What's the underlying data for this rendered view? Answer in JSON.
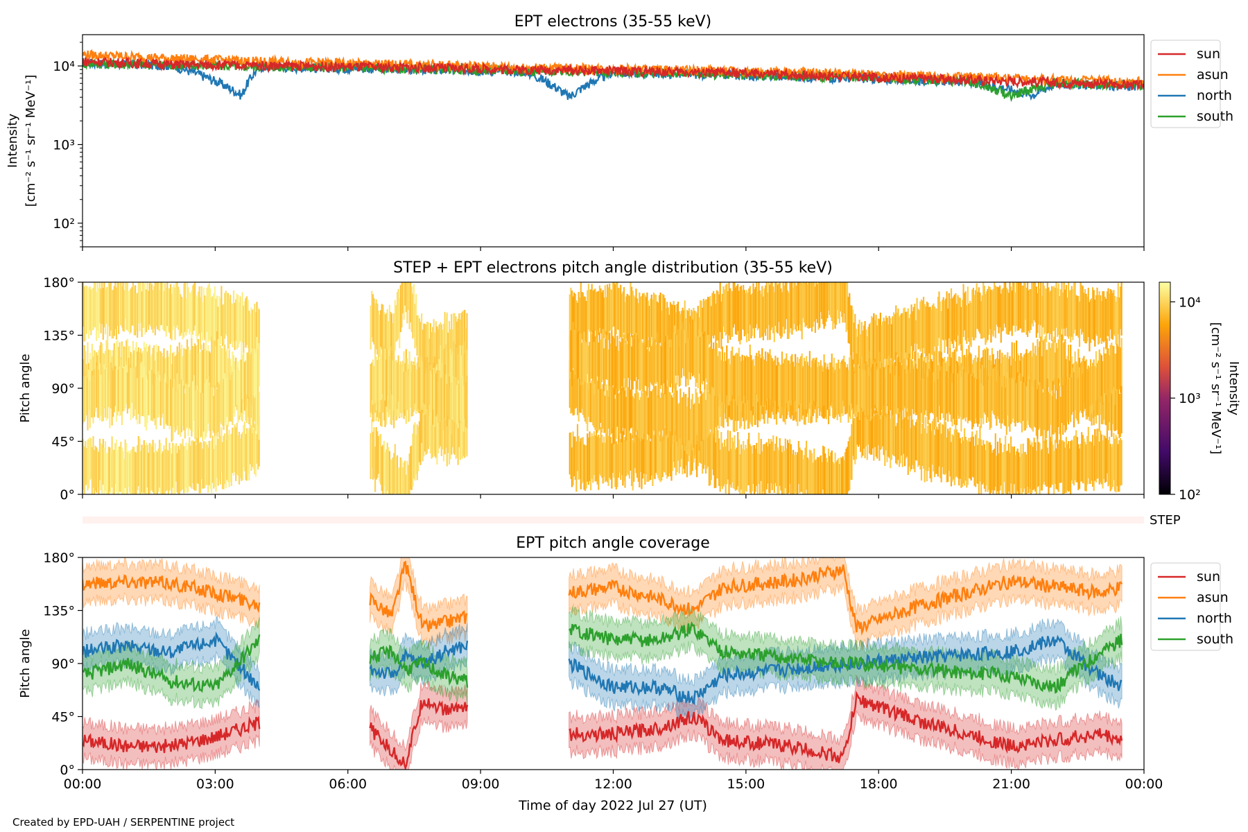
{
  "figure": {
    "footer": "Created by EPD-UAH / SERPENTINE project",
    "xlabel": "Time of day 2022 Jul 27 (UT)",
    "time_ticks": [
      "00:00",
      "03:00",
      "06:00",
      "09:00",
      "12:00",
      "15:00",
      "18:00",
      "21:00",
      "00:00"
    ]
  },
  "colors": {
    "sun": "#d62728",
    "asun": "#ff7f0e",
    "north": "#1f77b4",
    "south": "#2ca02c"
  },
  "chart_data": [
    {
      "type": "line",
      "title": "EPT electrons (35-55 keV)",
      "ylabel_line1": "Intensity",
      "ylabel_line2": "[cm⁻² s⁻¹ sr⁻¹ MeV⁻¹]",
      "yscale": "log",
      "ylim": [
        50,
        25000
      ],
      "y_ticks": [
        "10²",
        "10³",
        "10⁴"
      ],
      "x_hours_range": [
        0,
        24
      ],
      "legend": [
        "sun",
        "asun",
        "north",
        "south"
      ],
      "series": [
        {
          "name": "sun",
          "x": [
            0,
            2,
            4,
            6,
            8,
            10,
            12,
            14,
            16,
            18,
            20,
            22,
            24
          ],
          "y": [
            11500,
            10500,
            10200,
            9800,
            9500,
            9000,
            8700,
            8300,
            7800,
            7200,
            6700,
            6200,
            5700
          ]
        },
        {
          "name": "asun",
          "x": [
            0,
            2,
            4,
            6,
            8,
            10,
            12,
            14,
            16,
            18,
            20,
            22,
            24
          ],
          "y": [
            14000,
            12500,
            11500,
            10800,
            10300,
            9600,
            9200,
            8800,
            8300,
            7700,
            7200,
            6800,
            6300
          ]
        },
        {
          "name": "north",
          "x": [
            0,
            2,
            3.6,
            4,
            6,
            8,
            10,
            11,
            12,
            14,
            16,
            18,
            20,
            21.5,
            22,
            24
          ],
          "y": [
            11000,
            10200,
            4200,
            9800,
            9400,
            9000,
            8600,
            4000,
            8300,
            7900,
            7400,
            6900,
            6400,
            4300,
            6000,
            5500
          ]
        },
        {
          "name": "south",
          "x": [
            0,
            2,
            4,
            6,
            8,
            10,
            12,
            14,
            16,
            18,
            20,
            21,
            22,
            24
          ],
          "y": [
            10800,
            10300,
            9900,
            9600,
            9200,
            8700,
            8400,
            8000,
            7500,
            7000,
            6500,
            4200,
            6100,
            5700
          ]
        }
      ]
    },
    {
      "type": "heatmap",
      "title": "STEP + EPT electrons pitch angle distribution (35-55 keV)",
      "ylabel": "Pitch angle",
      "ylim": [
        0,
        180
      ],
      "y_ticks": [
        "0°",
        "45°",
        "90°",
        "135°",
        "180°"
      ],
      "colorbar": {
        "label": "Intensity",
        "units": "[cm⁻² s⁻¹ sr⁻¹ MeV⁻¹]",
        "scale": "log",
        "range": [
          100,
          16000
        ],
        "ticks": [
          "10²",
          "10³",
          "10⁴"
        ]
      },
      "data_segments_hours": [
        [
          0,
          4.0
        ],
        [
          6.5,
          8.7
        ],
        [
          11.0,
          24.0
        ]
      ],
      "intensity_by_segment": [
        12000,
        11000,
        8000
      ]
    },
    {
      "type": "line",
      "title": "STEP",
      "note": "STEP coverage strip",
      "range_hours": [
        0,
        24
      ]
    },
    {
      "type": "line",
      "title": "EPT pitch angle coverage",
      "ylabel": "Pitch angle",
      "ylim": [
        0,
        180
      ],
      "y_ticks": [
        "0°",
        "45°",
        "90°",
        "135°",
        "180°"
      ],
      "legend": [
        "sun",
        "asun",
        "north",
        "south"
      ],
      "band_halfwidth_deg": 15,
      "series": [
        {
          "name": "sun",
          "segments": [
            {
              "x": [
                0,
                1,
                2,
                3,
                4.0
              ],
              "y": [
                25,
                20,
                20,
                28,
                40
              ]
            },
            {
              "x": [
                6.5,
                7,
                7.3,
                7.7,
                8.2,
                8.7
              ],
              "y": [
                35,
                15,
                5,
                60,
                50,
                55
              ]
            },
            {
              "x": [
                11,
                12,
                13,
                13.8,
                14.5,
                16,
                17.2,
                17.5,
                19,
                21,
                23,
                23.5
              ],
              "y": [
                30,
                30,
                35,
                45,
                25,
                20,
                10,
                60,
                40,
                20,
                30,
                25
              ]
            }
          ]
        },
        {
          "name": "asun",
          "segments": [
            {
              "x": [
                0,
                1,
                2,
                3,
                4.0
              ],
              "y": [
                158,
                160,
                158,
                150,
                140
              ]
            },
            {
              "x": [
                6.5,
                7,
                7.3,
                7.7,
                8.2,
                8.7
              ],
              "y": [
                145,
                130,
                175,
                120,
                125,
                130
              ]
            },
            {
              "x": [
                11,
                12,
                13,
                13.8,
                14.5,
                16,
                17.2,
                17.5,
                19,
                21,
                23,
                23.5
              ],
              "y": [
                150,
                155,
                145,
                135,
                155,
                160,
                170,
                120,
                140,
                160,
                150,
                155
              ]
            }
          ]
        },
        {
          "name": "north",
          "segments": [
            {
              "x": [
                0,
                1,
                2,
                3,
                4.0
              ],
              "y": [
                100,
                105,
                100,
                110,
                70
              ]
            },
            {
              "x": [
                6.5,
                7,
                7.3,
                7.7,
                8.2,
                8.7
              ],
              "y": [
                85,
                80,
                95,
                90,
                100,
                105
              ]
            },
            {
              "x": [
                11,
                12,
                13,
                13.8,
                14.5,
                16,
                17.2,
                17.5,
                19,
                21,
                22,
                23,
                23.5
              ],
              "y": [
                90,
                70,
                70,
                60,
                80,
                85,
                90,
                90,
                95,
                100,
                110,
                80,
                70
              ]
            }
          ]
        },
        {
          "name": "south",
          "segments": [
            {
              "x": [
                0,
                1,
                2,
                3,
                4.0
              ],
              "y": [
                80,
                90,
                75,
                70,
                110
              ]
            },
            {
              "x": [
                6.5,
                7,
                7.3,
                7.7,
                8.2,
                8.7
              ],
              "y": [
                95,
                100,
                85,
                90,
                80,
                75
              ]
            },
            {
              "x": [
                11,
                12,
                13,
                13.8,
                14.5,
                16,
                17.2,
                17.5,
                19,
                21,
                22,
                23,
                23.5
              ],
              "y": [
                120,
                110,
                110,
                120,
                100,
                95,
                90,
                90,
                85,
                80,
                70,
                100,
                110
              ]
            }
          ]
        }
      ]
    }
  ]
}
